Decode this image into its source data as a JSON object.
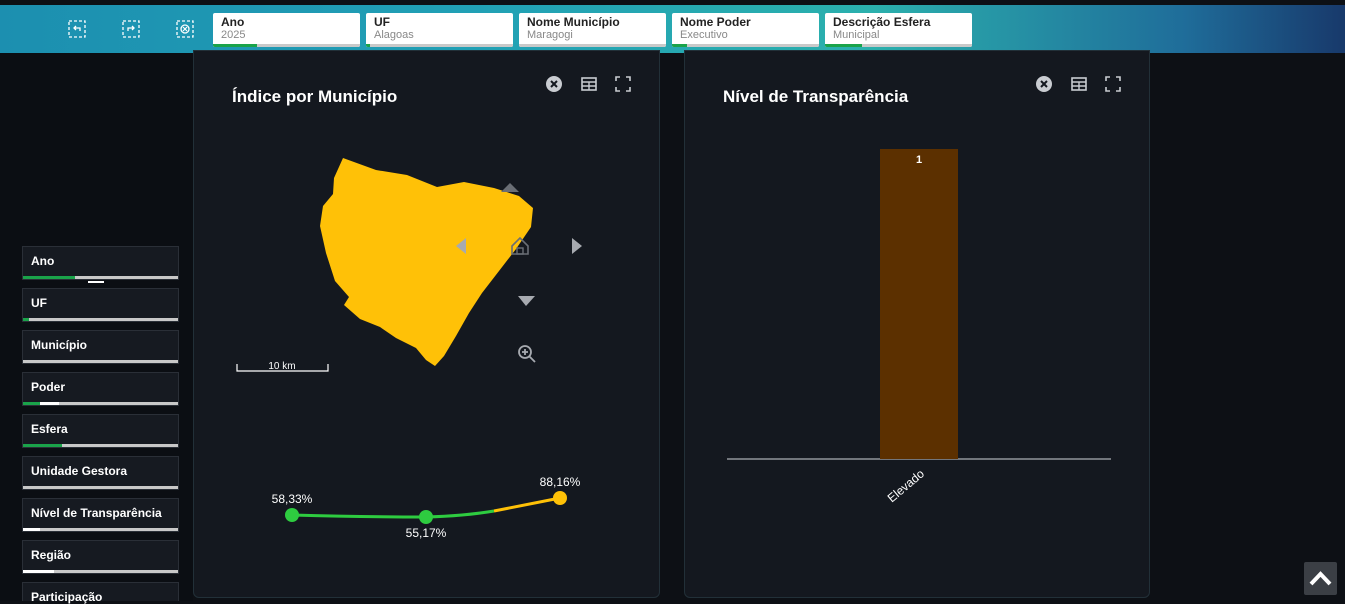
{
  "filters": [
    {
      "label": "Ano",
      "value": "2025",
      "fill": 0.3
    },
    {
      "label": "UF",
      "value": "Alagoas",
      "fill": 0.03
    },
    {
      "label": "Nome Município",
      "value": "Maragogi",
      "fill": 0
    },
    {
      "label": "Nome Poder",
      "value": "Executivo",
      "fill": 0.1
    },
    {
      "label": "Descrição Esfera",
      "value": "Municipal",
      "fill": 0.25
    }
  ],
  "sidebar": {
    "items": [
      {
        "label": "Ano"
      },
      {
        "label": "UF"
      },
      {
        "label": "Município"
      },
      {
        "label": "Poder"
      },
      {
        "label": "Esfera"
      },
      {
        "label": "Unidade Gestora"
      },
      {
        "label": "Nível de Transparência"
      },
      {
        "label": "Região"
      },
      {
        "label": "Participação"
      }
    ]
  },
  "map_panel": {
    "title": "Índice por Município",
    "scale_label": "10 km",
    "map_color": "#ffc107",
    "trend_values": [
      "58,33%",
      "55,17%",
      "88,16%"
    ]
  },
  "bar_panel": {
    "title": "Nível de Transparência"
  },
  "chart_data": {
    "type": "bar",
    "title": "Nível de Transparência",
    "categories": [
      "Elevado"
    ],
    "values": [
      1
    ],
    "data_labels": [
      "1"
    ],
    "bar_color": "#5c3000",
    "xlabel": "",
    "ylabel": "",
    "ylim": [
      0,
      1
    ]
  }
}
